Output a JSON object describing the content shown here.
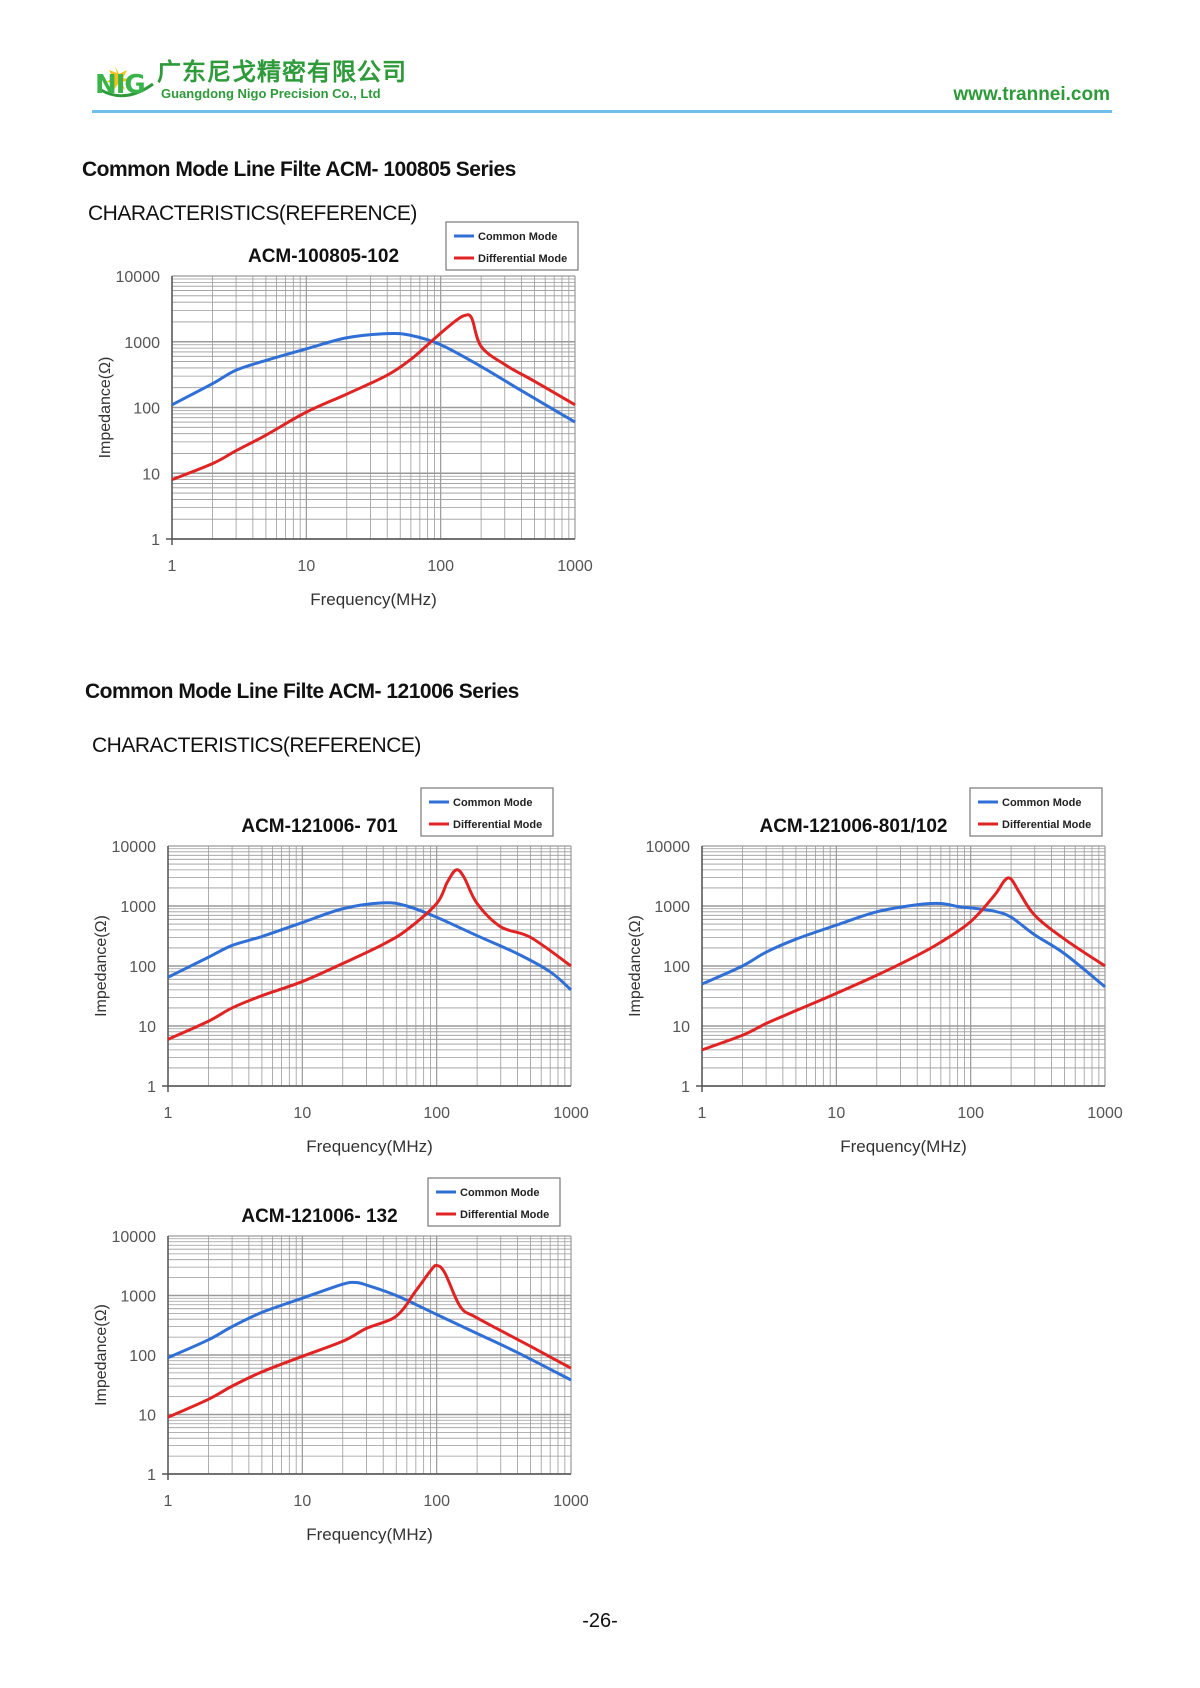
{
  "header": {
    "logo_text": "NIG",
    "company_cn": "广东尼戈精密有限公司",
    "company_en": "Guangdong Nigo Precision Co., Ltd",
    "website": "www.trannei.com"
  },
  "sections": [
    {
      "title": "Common Mode Line Filte ACM- 100805 Series",
      "subtitle": "CHARACTERISTICS(REFERENCE)"
    },
    {
      "title": "Common Mode Line Filte ACM- 121006 Series",
      "subtitle": "CHARACTERISTICS(REFERENCE)"
    }
  ],
  "colors": {
    "common_mode": "#2f6fd6",
    "differential_mode": "#e02424",
    "grid": "#9a9a9a"
  },
  "chart_data": [
    {
      "type": "line",
      "title": "ACM-100805-102",
      "xlabel": "Frequency(MHz)",
      "ylabel": "Impedance(Ω)",
      "xscale": "log",
      "yscale": "log",
      "xlim": [
        1,
        1000
      ],
      "ylim": [
        1,
        10000
      ],
      "xticks": [
        "1",
        "10",
        "100",
        "1000"
      ],
      "yticks": [
        "1",
        "10",
        "100",
        "1000",
        "10000"
      ],
      "grid": true,
      "legend": "top-right",
      "series": [
        {
          "name": "Common Mode",
          "color": "#2f6fd6",
          "x": [
            1,
            2,
            3,
            5,
            10,
            20,
            40,
            60,
            100,
            200,
            400,
            1000
          ],
          "y": [
            110,
            230,
            370,
            520,
            780,
            1150,
            1330,
            1250,
            900,
            420,
            180,
            60
          ]
        },
        {
          "name": "Differential Mode",
          "color": "#e02424",
          "x": [
            1,
            2,
            3,
            5,
            10,
            20,
            40,
            60,
            80,
            100,
            130,
            150,
            170,
            200,
            300,
            500,
            1000
          ],
          "y": [
            8,
            14,
            22,
            38,
            85,
            160,
            310,
            540,
            900,
            1350,
            2100,
            2500,
            2300,
            850,
            450,
            250,
            110
          ]
        }
      ]
    },
    {
      "type": "line",
      "title": "ACM-121006- 701",
      "xlabel": "Frequency(MHz)",
      "ylabel": "Impedance(Ω)",
      "xscale": "log",
      "yscale": "log",
      "xlim": [
        1,
        1000
      ],
      "ylim": [
        1,
        10000
      ],
      "xticks": [
        "1",
        "10",
        "100",
        "1000"
      ],
      "yticks": [
        "1",
        "10",
        "100",
        "1000",
        "10000"
      ],
      "grid": true,
      "legend": "top-right",
      "series": [
        {
          "name": "Common Mode",
          "color": "#2f6fd6",
          "x": [
            1,
            2,
            3,
            5,
            10,
            20,
            40,
            60,
            100,
            200,
            400,
            700,
            1000
          ],
          "y": [
            65,
            140,
            220,
            310,
            530,
            900,
            1130,
            1000,
            650,
            320,
            160,
            80,
            40
          ]
        },
        {
          "name": "Differential Mode",
          "color": "#e02424",
          "x": [
            1,
            2,
            3,
            5,
            10,
            20,
            40,
            60,
            100,
            120,
            140,
            160,
            200,
            300,
            500,
            1000
          ],
          "y": [
            6,
            12,
            20,
            32,
            55,
            110,
            230,
            400,
            1100,
            2500,
            4000,
            3000,
            1100,
            450,
            300,
            100
          ]
        }
      ]
    },
    {
      "type": "line",
      "title": "ACM-121006-801/102",
      "xlabel": "Frequency(MHz)",
      "ylabel": "Impedance(Ω)",
      "xscale": "log",
      "yscale": "log",
      "xlim": [
        1,
        1000
      ],
      "ylim": [
        1,
        10000
      ],
      "xticks": [
        "1",
        "10",
        "100",
        "1000"
      ],
      "yticks": [
        "1",
        "10",
        "100",
        "1000",
        "10000"
      ],
      "grid": true,
      "legend": "top-right",
      "series": [
        {
          "name": "Common Mode",
          "color": "#2f6fd6",
          "x": [
            1,
            2,
            3,
            5,
            10,
            20,
            40,
            60,
            80,
            100,
            150,
            200,
            300,
            500,
            1000
          ],
          "y": [
            50,
            100,
            170,
            280,
            480,
            800,
            1050,
            1100,
            980,
            930,
            820,
            650,
            330,
            160,
            45
          ]
        },
        {
          "name": "Differential Mode",
          "color": "#e02424",
          "x": [
            1,
            2,
            3,
            5,
            10,
            20,
            40,
            60,
            100,
            150,
            180,
            200,
            230,
            300,
            500,
            1000
          ],
          "y": [
            4,
            7,
            11,
            18,
            35,
            70,
            150,
            250,
            550,
            1500,
            2700,
            2800,
            1700,
            700,
            280,
            100
          ]
        }
      ]
    },
    {
      "type": "line",
      "title": "ACM-121006- 132",
      "xlabel": "Frequency(MHz)",
      "ylabel": "Impedance(Ω)",
      "xscale": "log",
      "yscale": "log",
      "xlim": [
        1,
        1000
      ],
      "ylim": [
        1,
        10000
      ],
      "xticks": [
        "1",
        "10",
        "100",
        "1000"
      ],
      "yticks": [
        "1",
        "10",
        "100",
        "1000",
        "10000"
      ],
      "grid": true,
      "legend": "top-right",
      "series": [
        {
          "name": "Common Mode",
          "color": "#2f6fd6",
          "x": [
            1,
            2,
            3,
            5,
            10,
            20,
            25,
            30,
            50,
            100,
            200,
            400,
            1000
          ],
          "y": [
            90,
            180,
            300,
            520,
            900,
            1550,
            1650,
            1500,
            1000,
            480,
            230,
            110,
            38
          ]
        },
        {
          "name": "Differential Mode",
          "color": "#e02424",
          "x": [
            1,
            2,
            3,
            5,
            10,
            20,
            30,
            50,
            70,
            90,
            100,
            115,
            150,
            200,
            500,
            1000
          ],
          "y": [
            9,
            18,
            30,
            52,
            95,
            170,
            280,
            450,
            1200,
            2600,
            3200,
            2400,
            650,
            420,
            140,
            60
          ]
        }
      ]
    }
  ],
  "page_number": "-26-"
}
